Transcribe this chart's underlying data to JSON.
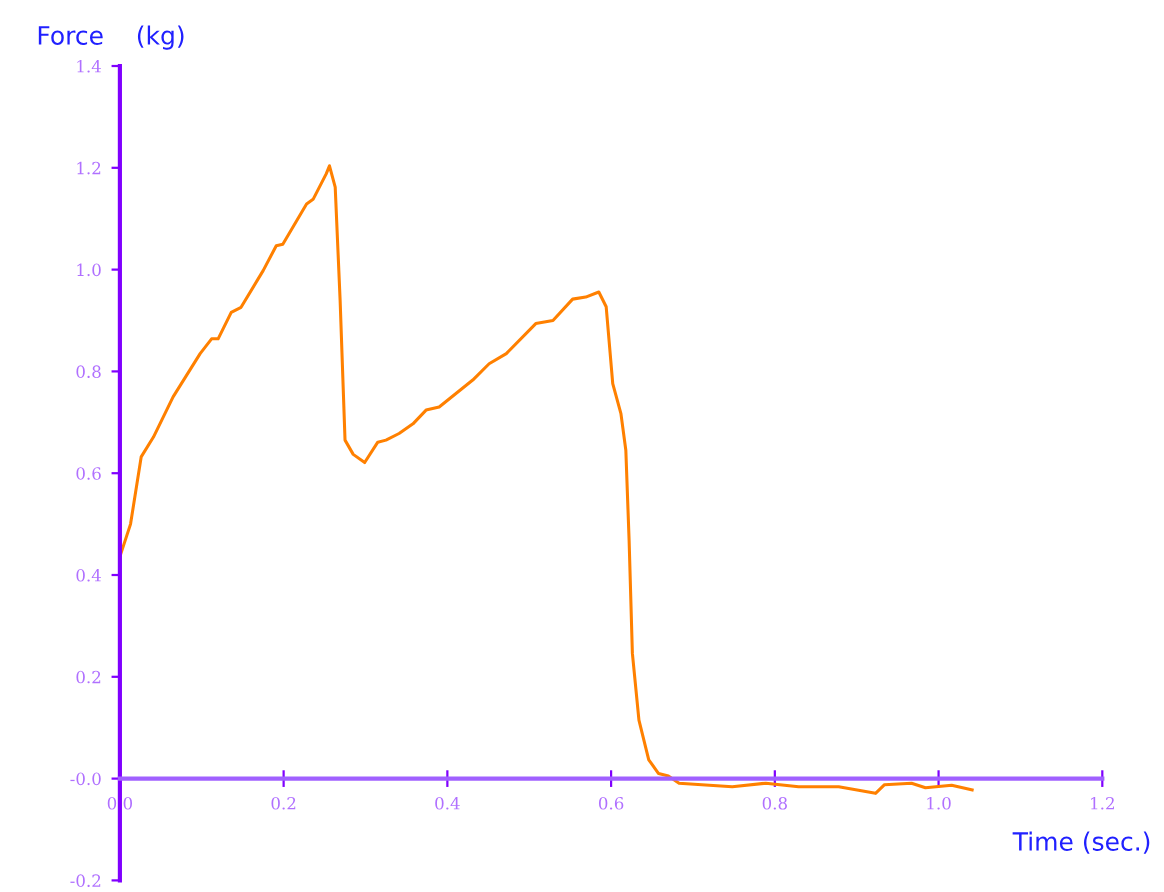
{
  "chart_data": {
    "type": "line",
    "xlabel": "Time (sec.)",
    "ylabel": "Force    (kg)",
    "x": [
      0.0,
      0.013,
      0.026,
      0.041,
      0.065,
      0.098,
      0.112,
      0.12,
      0.136,
      0.148,
      0.175,
      0.191,
      0.199,
      0.228,
      0.236,
      0.252,
      0.256,
      0.263,
      0.269,
      0.275,
      0.285,
      0.299,
      0.315,
      0.325,
      0.341,
      0.358,
      0.374,
      0.39,
      0.431,
      0.451,
      0.472,
      0.508,
      0.529,
      0.553,
      0.569,
      0.585,
      0.594,
      0.602,
      0.612,
      0.618,
      0.622,
      0.626,
      0.634,
      0.646,
      0.658,
      0.67,
      0.683,
      0.748,
      0.789,
      0.829,
      0.878,
      0.923,
      0.934,
      0.967,
      0.984,
      1.016,
      1.041
    ],
    "series": [
      {
        "color": "#ff8000",
        "values": [
          0.436,
          0.5,
          0.632,
          0.671,
          0.75,
          0.835,
          0.864,
          0.864,
          0.916,
          0.926,
          0.998,
          1.047,
          1.05,
          1.129,
          1.138,
          1.188,
          1.204,
          1.162,
          0.94,
          0.665,
          0.637,
          0.621,
          0.661,
          0.665,
          0.678,
          0.697,
          0.724,
          0.73,
          0.783,
          0.815,
          0.835,
          0.894,
          0.9,
          0.942,
          0.946,
          0.956,
          0.927,
          0.776,
          0.717,
          0.645,
          0.468,
          0.246,
          0.115,
          0.037,
          0.01,
          0.005,
          -0.009,
          -0.016,
          -0.009,
          -0.016,
          -0.016,
          -0.029,
          -0.012,
          -0.009,
          -0.018,
          -0.013,
          -0.022
        ]
      }
    ],
    "xlim": [
      0,
      1.2
    ],
    "ylim": [
      -0.2,
      1.4
    ],
    "xticks": [
      {
        "value": 0,
        "label": "0.0"
      },
      0.2,
      0.4,
      0.6,
      0.8,
      {
        "value": 1,
        "label": "1.0"
      },
      1.2
    ],
    "yticks": [
      -0.2,
      {
        "value": 0,
        "label": "-0.0"
      },
      0.2,
      0.4,
      0.6,
      0.8,
      {
        "value": 1,
        "label": "1.0"
      },
      1.2,
      1.4
    ],
    "grid": false,
    "marker": "none",
    "line_style": "solid"
  }
}
